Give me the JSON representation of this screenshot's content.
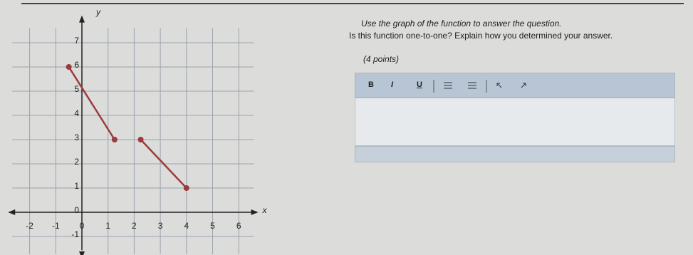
{
  "chart_data": {
    "type": "line",
    "xlabel": "x",
    "ylabel": "y",
    "xlim": [
      -2.5,
      6.8
    ],
    "ylim": [
      -1.5,
      7.6
    ],
    "xticks": [
      -2,
      -1,
      0,
      1,
      2,
      3,
      4,
      5,
      6
    ],
    "yticks": [
      -1,
      0,
      1,
      2,
      3,
      4,
      5,
      6,
      7
    ],
    "grid": true,
    "series": [
      {
        "color": "#9b3b3b",
        "x": [
          -0.5,
          1.25
        ],
        "values": [
          6,
          3
        ]
      },
      {
        "color": "#9b3b3b",
        "x": [
          2.25,
          4
        ],
        "values": [
          3,
          1
        ]
      }
    ]
  },
  "question": {
    "line1": "Use the graph of the function to answer the question.",
    "line2": "Is this function one-to-one? Explain how you determined your answer.",
    "points": "(4 points)"
  },
  "toolbar": {
    "bold": "B",
    "italic": "I",
    "underline": "U"
  }
}
